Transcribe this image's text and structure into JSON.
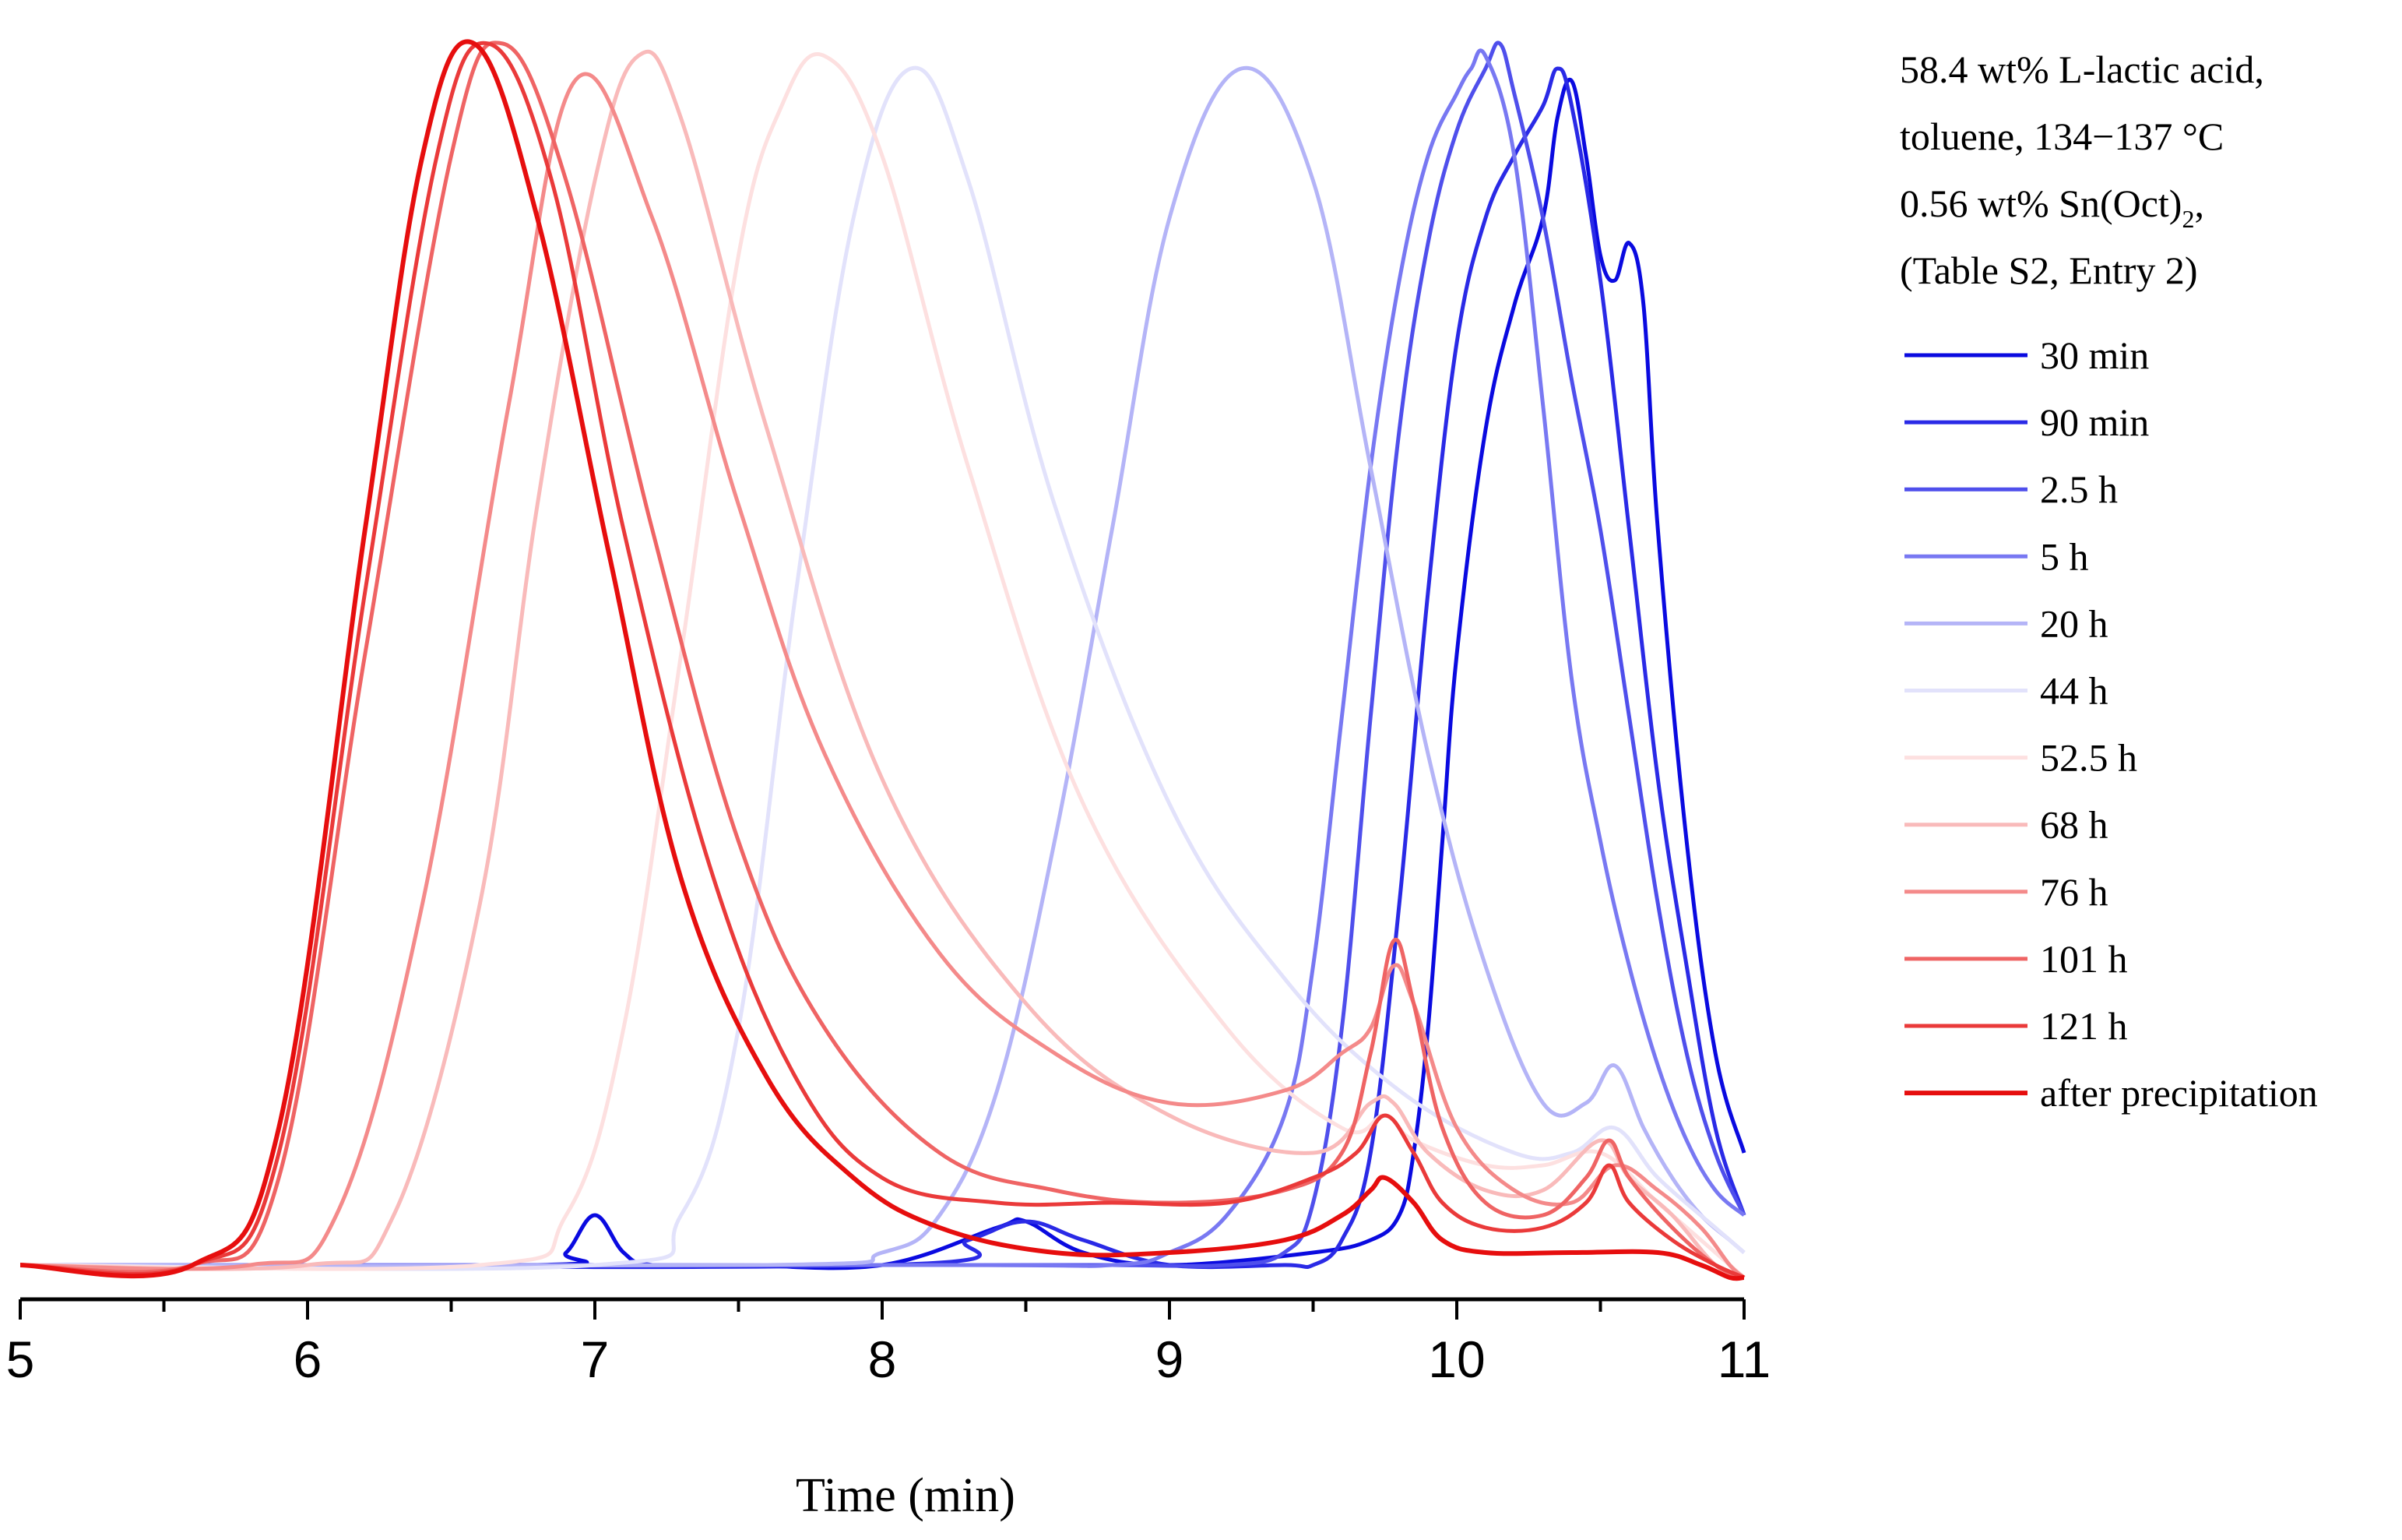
{
  "chart_data": {
    "type": "line",
    "title": "",
    "xlabel": "Time (min)",
    "ylabel": "",
    "xlim": [
      5,
      11
    ],
    "ylim": [
      0,
      1
    ],
    "xticks": [
      "5",
      "6",
      "7",
      "8",
      "9",
      "10",
      "11"
    ],
    "grid": false,
    "legend_position": "right",
    "annotation": {
      "line1": "58.4 wt% L-lactic acid,",
      "line2": "toluene, 134−137 °C",
      "line3_main": "0.56 wt% Sn(Oct)",
      "line3_sub": "2",
      "line3_end": ",",
      "line4": "(Table S2, Entry 2)"
    },
    "series": [
      {
        "name": "30 min",
        "color": "#0a0ae0",
        "width": 5,
        "x": [
          5,
          6.8,
          6.9,
          7.0,
          7.1,
          7.2,
          7.5,
          8.0,
          8.4,
          8.5,
          8.7,
          9.0,
          9.5,
          9.7,
          9.8,
          9.85,
          9.9,
          9.95,
          10.0,
          10.1,
          10.2,
          10.3,
          10.35,
          10.4,
          10.45,
          10.5,
          10.55,
          10.6,
          10.65,
          10.7,
          10.8,
          10.9,
          11.0
        ],
        "y": [
          0.01,
          0.01,
          0.02,
          0.05,
          0.02,
          0.01,
          0.01,
          0.01,
          0.04,
          0.045,
          0.02,
          0.01,
          0.02,
          0.03,
          0.05,
          0.1,
          0.2,
          0.35,
          0.5,
          0.68,
          0.78,
          0.85,
          0.93,
          0.96,
          0.9,
          0.82,
          0.8,
          0.83,
          0.78,
          0.6,
          0.35,
          0.18,
          0.1
        ]
      },
      {
        "name": "90 min",
        "color": "#2a2ae6",
        "width": 5,
        "x": [
          5,
          8.0,
          8.3,
          8.5,
          8.7,
          9.0,
          9.4,
          9.5,
          9.6,
          9.7,
          9.8,
          9.9,
          10.0,
          10.1,
          10.2,
          10.3,
          10.35,
          10.4,
          10.5,
          10.6,
          10.7,
          10.8,
          10.9,
          11.0
        ],
        "y": [
          0.01,
          0.01,
          0.03,
          0.045,
          0.03,
          0.01,
          0.01,
          0.01,
          0.03,
          0.1,
          0.3,
          0.55,
          0.75,
          0.85,
          0.9,
          0.94,
          0.97,
          0.94,
          0.8,
          0.6,
          0.4,
          0.25,
          0.12,
          0.05
        ]
      },
      {
        "name": "2.5 h",
        "color": "#4f4fec",
        "width": 5,
        "x": [
          5,
          8.0,
          8.4,
          8.8,
          9.2,
          9.4,
          9.5,
          9.6,
          9.7,
          9.8,
          9.9,
          10.0,
          10.1,
          10.15,
          10.2,
          10.3,
          10.4,
          10.5,
          10.6,
          10.7,
          10.8,
          10.9,
          11.0
        ],
        "y": [
          0.01,
          0.01,
          0.01,
          0.01,
          0.01,
          0.02,
          0.06,
          0.2,
          0.45,
          0.68,
          0.83,
          0.92,
          0.97,
          0.99,
          0.95,
          0.85,
          0.72,
          0.6,
          0.45,
          0.3,
          0.18,
          0.1,
          0.05
        ]
      },
      {
        "name": "5 h",
        "color": "#7878f2",
        "width": 5,
        "x": [
          5,
          8.2,
          8.8,
          9.0,
          9.2,
          9.4,
          9.5,
          9.6,
          9.7,
          9.8,
          9.9,
          10.0,
          10.05,
          10.1,
          10.2,
          10.3,
          10.4,
          10.5,
          10.6,
          10.7,
          10.8,
          10.9,
          11.0
        ],
        "y": [
          0.01,
          0.01,
          0.01,
          0.02,
          0.05,
          0.13,
          0.25,
          0.45,
          0.65,
          0.8,
          0.9,
          0.95,
          0.97,
          0.98,
          0.9,
          0.7,
          0.48,
          0.35,
          0.25,
          0.17,
          0.11,
          0.07,
          0.05
        ]
      },
      {
        "name": "20 h",
        "color": "#b4b4f7",
        "width": 5,
        "x": [
          5,
          7.6,
          8.0,
          8.2,
          8.4,
          8.6,
          8.8,
          9.0,
          9.25,
          9.5,
          9.7,
          9.9,
          10.1,
          10.3,
          10.45,
          10.55,
          10.65,
          10.75,
          10.85,
          10.95,
          11.0
        ],
        "y": [
          0.01,
          0.01,
          0.02,
          0.05,
          0.15,
          0.35,
          0.6,
          0.85,
          0.97,
          0.88,
          0.65,
          0.42,
          0.25,
          0.14,
          0.14,
          0.17,
          0.12,
          0.08,
          0.05,
          0.03,
          0.02
        ]
      },
      {
        "name": "44 h",
        "color": "#e2e2fb",
        "width": 5,
        "x": [
          5,
          7.0,
          7.3,
          7.5,
          7.7,
          7.9,
          8.1,
          8.3,
          8.6,
          9.0,
          9.4,
          9.8,
          10.2,
          10.4,
          10.55,
          10.7,
          10.9,
          11.0
        ],
        "y": [
          0.01,
          0.01,
          0.05,
          0.2,
          0.55,
          0.85,
          0.97,
          0.88,
          0.62,
          0.38,
          0.24,
          0.15,
          0.1,
          0.1,
          0.12,
          0.08,
          0.04,
          0.02
        ]
      },
      {
        "name": "52.5 h",
        "color": "#fde0e0",
        "width": 5,
        "x": [
          5,
          6.6,
          6.9,
          7.1,
          7.3,
          7.5,
          7.65,
          7.8,
          8.0,
          8.3,
          8.7,
          9.2,
          9.6,
          9.75,
          9.85,
          10.1,
          10.3,
          10.5,
          10.7,
          10.9,
          11.0
        ],
        "y": [
          0.01,
          0.01,
          0.05,
          0.2,
          0.5,
          0.82,
          0.94,
          0.98,
          0.9,
          0.65,
          0.38,
          0.2,
          0.12,
          0.13,
          0.11,
          0.09,
          0.09,
          0.1,
          0.06,
          0.02,
          0.0
        ]
      },
      {
        "name": "68 h",
        "color": "#f9baba",
        "width": 5,
        "x": [
          5,
          6.0,
          6.3,
          6.6,
          6.8,
          7.0,
          7.15,
          7.3,
          7.6,
          8.0,
          8.5,
          9.0,
          9.5,
          9.7,
          9.78,
          9.9,
          10.1,
          10.3,
          10.5,
          10.6,
          10.75,
          10.9,
          11.0
        ],
        "y": [
          0.01,
          0.01,
          0.05,
          0.3,
          0.62,
          0.88,
          0.98,
          0.93,
          0.68,
          0.4,
          0.22,
          0.13,
          0.1,
          0.14,
          0.14,
          0.1,
          0.07,
          0.07,
          0.11,
          0.08,
          0.05,
          0.01,
          0.0
        ]
      },
      {
        "name": "76 h",
        "color": "#f48a8a",
        "width": 5,
        "x": [
          5,
          5.8,
          6.1,
          6.4,
          6.7,
          6.93,
          7.2,
          7.5,
          7.8,
          8.2,
          8.6,
          9.0,
          9.4,
          9.6,
          9.7,
          9.78,
          9.85,
          10.0,
          10.2,
          10.4,
          10.55,
          10.7,
          10.85,
          10.95,
          11.0
        ],
        "y": [
          0.01,
          0.01,
          0.05,
          0.3,
          0.7,
          0.96,
          0.85,
          0.62,
          0.42,
          0.26,
          0.18,
          0.14,
          0.15,
          0.18,
          0.2,
          0.25,
          0.22,
          0.12,
          0.07,
          0.06,
          0.09,
          0.07,
          0.04,
          0.01,
          0.0
        ]
      },
      {
        "name": "101 h",
        "color": "#ef6464",
        "width": 5,
        "x": [
          5,
          5.6,
          5.9,
          6.2,
          6.5,
          6.68,
          6.9,
          7.2,
          7.5,
          7.8,
          8.2,
          8.6,
          9.0,
          9.4,
          9.6,
          9.7,
          9.78,
          9.85,
          9.95,
          10.1,
          10.3,
          10.45,
          10.53,
          10.6,
          10.75,
          10.9,
          11.0
        ],
        "y": [
          0.01,
          0.01,
          0.08,
          0.5,
          0.9,
          0.99,
          0.88,
          0.6,
          0.35,
          0.2,
          0.1,
          0.07,
          0.06,
          0.07,
          0.1,
          0.18,
          0.27,
          0.22,
          0.12,
          0.06,
          0.05,
          0.08,
          0.11,
          0.08,
          0.04,
          0.01,
          0.0
        ]
      },
      {
        "name": "121 h",
        "color": "#ea3a3a",
        "width": 5,
        "x": [
          5,
          5.6,
          5.9,
          6.2,
          6.45,
          6.63,
          6.85,
          7.1,
          7.4,
          7.7,
          8.0,
          8.4,
          8.8,
          9.2,
          9.5,
          9.65,
          9.75,
          9.85,
          9.95,
          10.1,
          10.3,
          10.45,
          10.53,
          10.6,
          10.75,
          10.9,
          11.0
        ],
        "y": [
          0.01,
          0.01,
          0.1,
          0.55,
          0.9,
          0.99,
          0.88,
          0.6,
          0.33,
          0.16,
          0.08,
          0.06,
          0.06,
          0.06,
          0.08,
          0.1,
          0.13,
          0.1,
          0.06,
          0.04,
          0.04,
          0.06,
          0.09,
          0.06,
          0.03,
          0.01,
          0.0
        ]
      },
      {
        "name": "after precipitation",
        "color": "#e60e0e",
        "width": 6,
        "x": [
          5,
          5.6,
          5.9,
          6.2,
          6.4,
          6.58,
          6.8,
          7.05,
          7.3,
          7.6,
          7.9,
          8.2,
          8.6,
          9.0,
          9.4,
          9.6,
          9.7,
          9.75,
          9.85,
          9.95,
          10.1,
          10.4,
          10.7,
          10.85,
          10.95,
          11.0
        ],
        "y": [
          0.01,
          0.01,
          0.12,
          0.6,
          0.9,
          0.99,
          0.85,
          0.58,
          0.32,
          0.16,
          0.08,
          0.04,
          0.02,
          0.02,
          0.03,
          0.05,
          0.07,
          0.08,
          0.06,
          0.03,
          0.02,
          0.02,
          0.02,
          0.01,
          0.0,
          0.0
        ]
      }
    ]
  }
}
